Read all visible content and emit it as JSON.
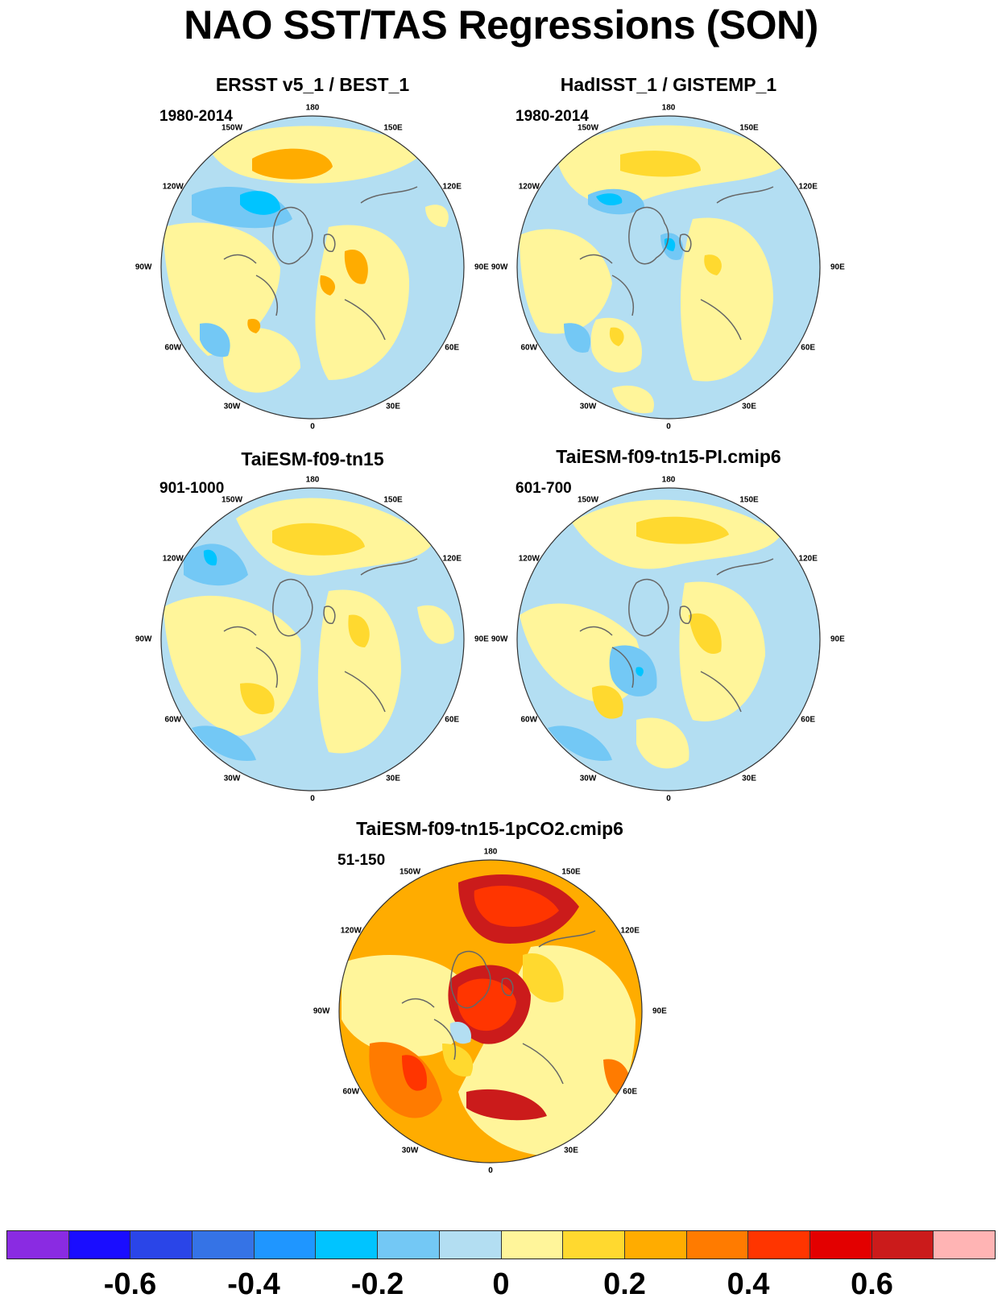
{
  "title": "NAO SST/TAS Regressions (SON)",
  "panels": [
    {
      "title": "ERSST v5_1 / BEST_1",
      "period": "1980-2014",
      "pattern": "obs1"
    },
    {
      "title": "HadISST_1 / GISTEMP_1",
      "period": "1980-2014",
      "pattern": "obs2"
    },
    {
      "title": "TaiESM-f09-tn15",
      "period": "901-1000",
      "pattern": "model1"
    },
    {
      "title": "TaiESM-f09-tn15-PI.cmip6",
      "period": "601-700",
      "pattern": "model2"
    },
    {
      "title": "TaiESM-f09-tn15-1pCO2.cmip6",
      "period": "51-150",
      "pattern": "warm"
    }
  ],
  "longitude_labels": [
    "180",
    "150E",
    "120E",
    "90E",
    "60E",
    "30E",
    "0",
    "30W",
    "60W",
    "90W",
    "120W",
    "150W"
  ],
  "colorbar": {
    "colors": [
      "#8a2be2",
      "#1a0dff",
      "#2a45e8",
      "#3573e6",
      "#1f96ff",
      "#00c4ff",
      "#73c8f5",
      "#b3def2",
      "#fff59a",
      "#ffd92f",
      "#ffac00",
      "#ff7b00",
      "#ff3500",
      "#e30000",
      "#cb1b1b",
      "#ffb4b4"
    ],
    "tick_labels": [
      "-0.6",
      "-0.4",
      "-0.2",
      "0",
      "0.2",
      "0.4",
      "0.6"
    ],
    "tick_values": [
      -0.6,
      -0.4,
      -0.2,
      0,
      0.2,
      0.4,
      0.6
    ],
    "range": [
      -0.8,
      0.8
    ]
  }
}
